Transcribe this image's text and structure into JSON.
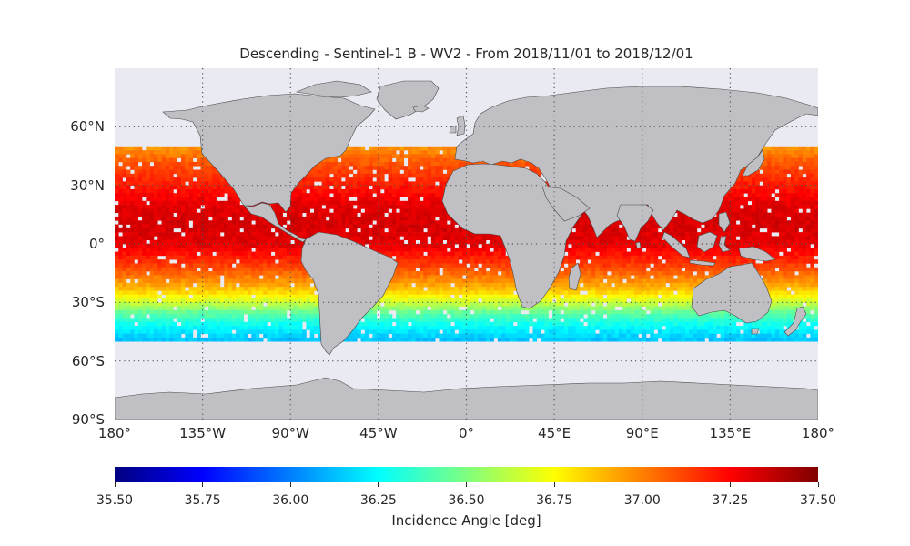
{
  "title": "Descending - Sentinel-1 B - WV2 - From 2018/11/01 to 2018/12/01",
  "map": {
    "projection": "plate-carree",
    "extent": {
      "lon": [
        -180,
        180
      ],
      "lat": [
        -90,
        90
      ]
    },
    "gridlines": "dotted",
    "land_color": "#c0c0c4",
    "ocean_background": "#eaeaf2",
    "lat_ticks": [
      {
        "value": 60,
        "label": "60°N"
      },
      {
        "value": 30,
        "label": "30°N"
      },
      {
        "value": 0,
        "label": "0°"
      },
      {
        "value": -30,
        "label": "30°S"
      },
      {
        "value": -60,
        "label": "60°S"
      },
      {
        "value": -90,
        "label": "90°S"
      }
    ],
    "lon_ticks": [
      {
        "value": -180,
        "label": "180°"
      },
      {
        "value": -135,
        "label": "135°W"
      },
      {
        "value": -90,
        "label": "90°W"
      },
      {
        "value": -45,
        "label": "45°W"
      },
      {
        "value": 0,
        "label": "0°"
      },
      {
        "value": 45,
        "label": "45°E"
      },
      {
        "value": 90,
        "label": "90°E"
      },
      {
        "value": 135,
        "label": "135°E"
      },
      {
        "value": 180,
        "label": "180°"
      }
    ]
  },
  "colorbar": {
    "label": "Incidence Angle [deg]",
    "colormap": "jet",
    "range": [
      35.5,
      37.5
    ],
    "ticks": [
      "35.50",
      "35.75",
      "36.00",
      "36.25",
      "36.50",
      "36.75",
      "37.00",
      "37.25",
      "37.50"
    ]
  },
  "chart_data": {
    "type": "heatmap",
    "title": "Descending - Sentinel-1 B - WV2 - From 2018/11/01 to 2018/12/01",
    "value_label": "Incidence Angle [deg]",
    "value_range": [
      35.5,
      37.5
    ],
    "grid_resolution_deg": 2,
    "data_lat_range": [
      -50,
      50
    ],
    "latitude_profile": {
      "lat": [
        50,
        40,
        30,
        20,
        10,
        0,
        -10,
        -20,
        -25,
        -30,
        -35,
        -40,
        -45,
        -50
      ],
      "incidence_angle": [
        36.95,
        37.1,
        37.2,
        37.3,
        37.33,
        37.3,
        37.15,
        36.95,
        36.82,
        36.65,
        36.45,
        36.3,
        36.2,
        36.12
      ]
    }
  }
}
